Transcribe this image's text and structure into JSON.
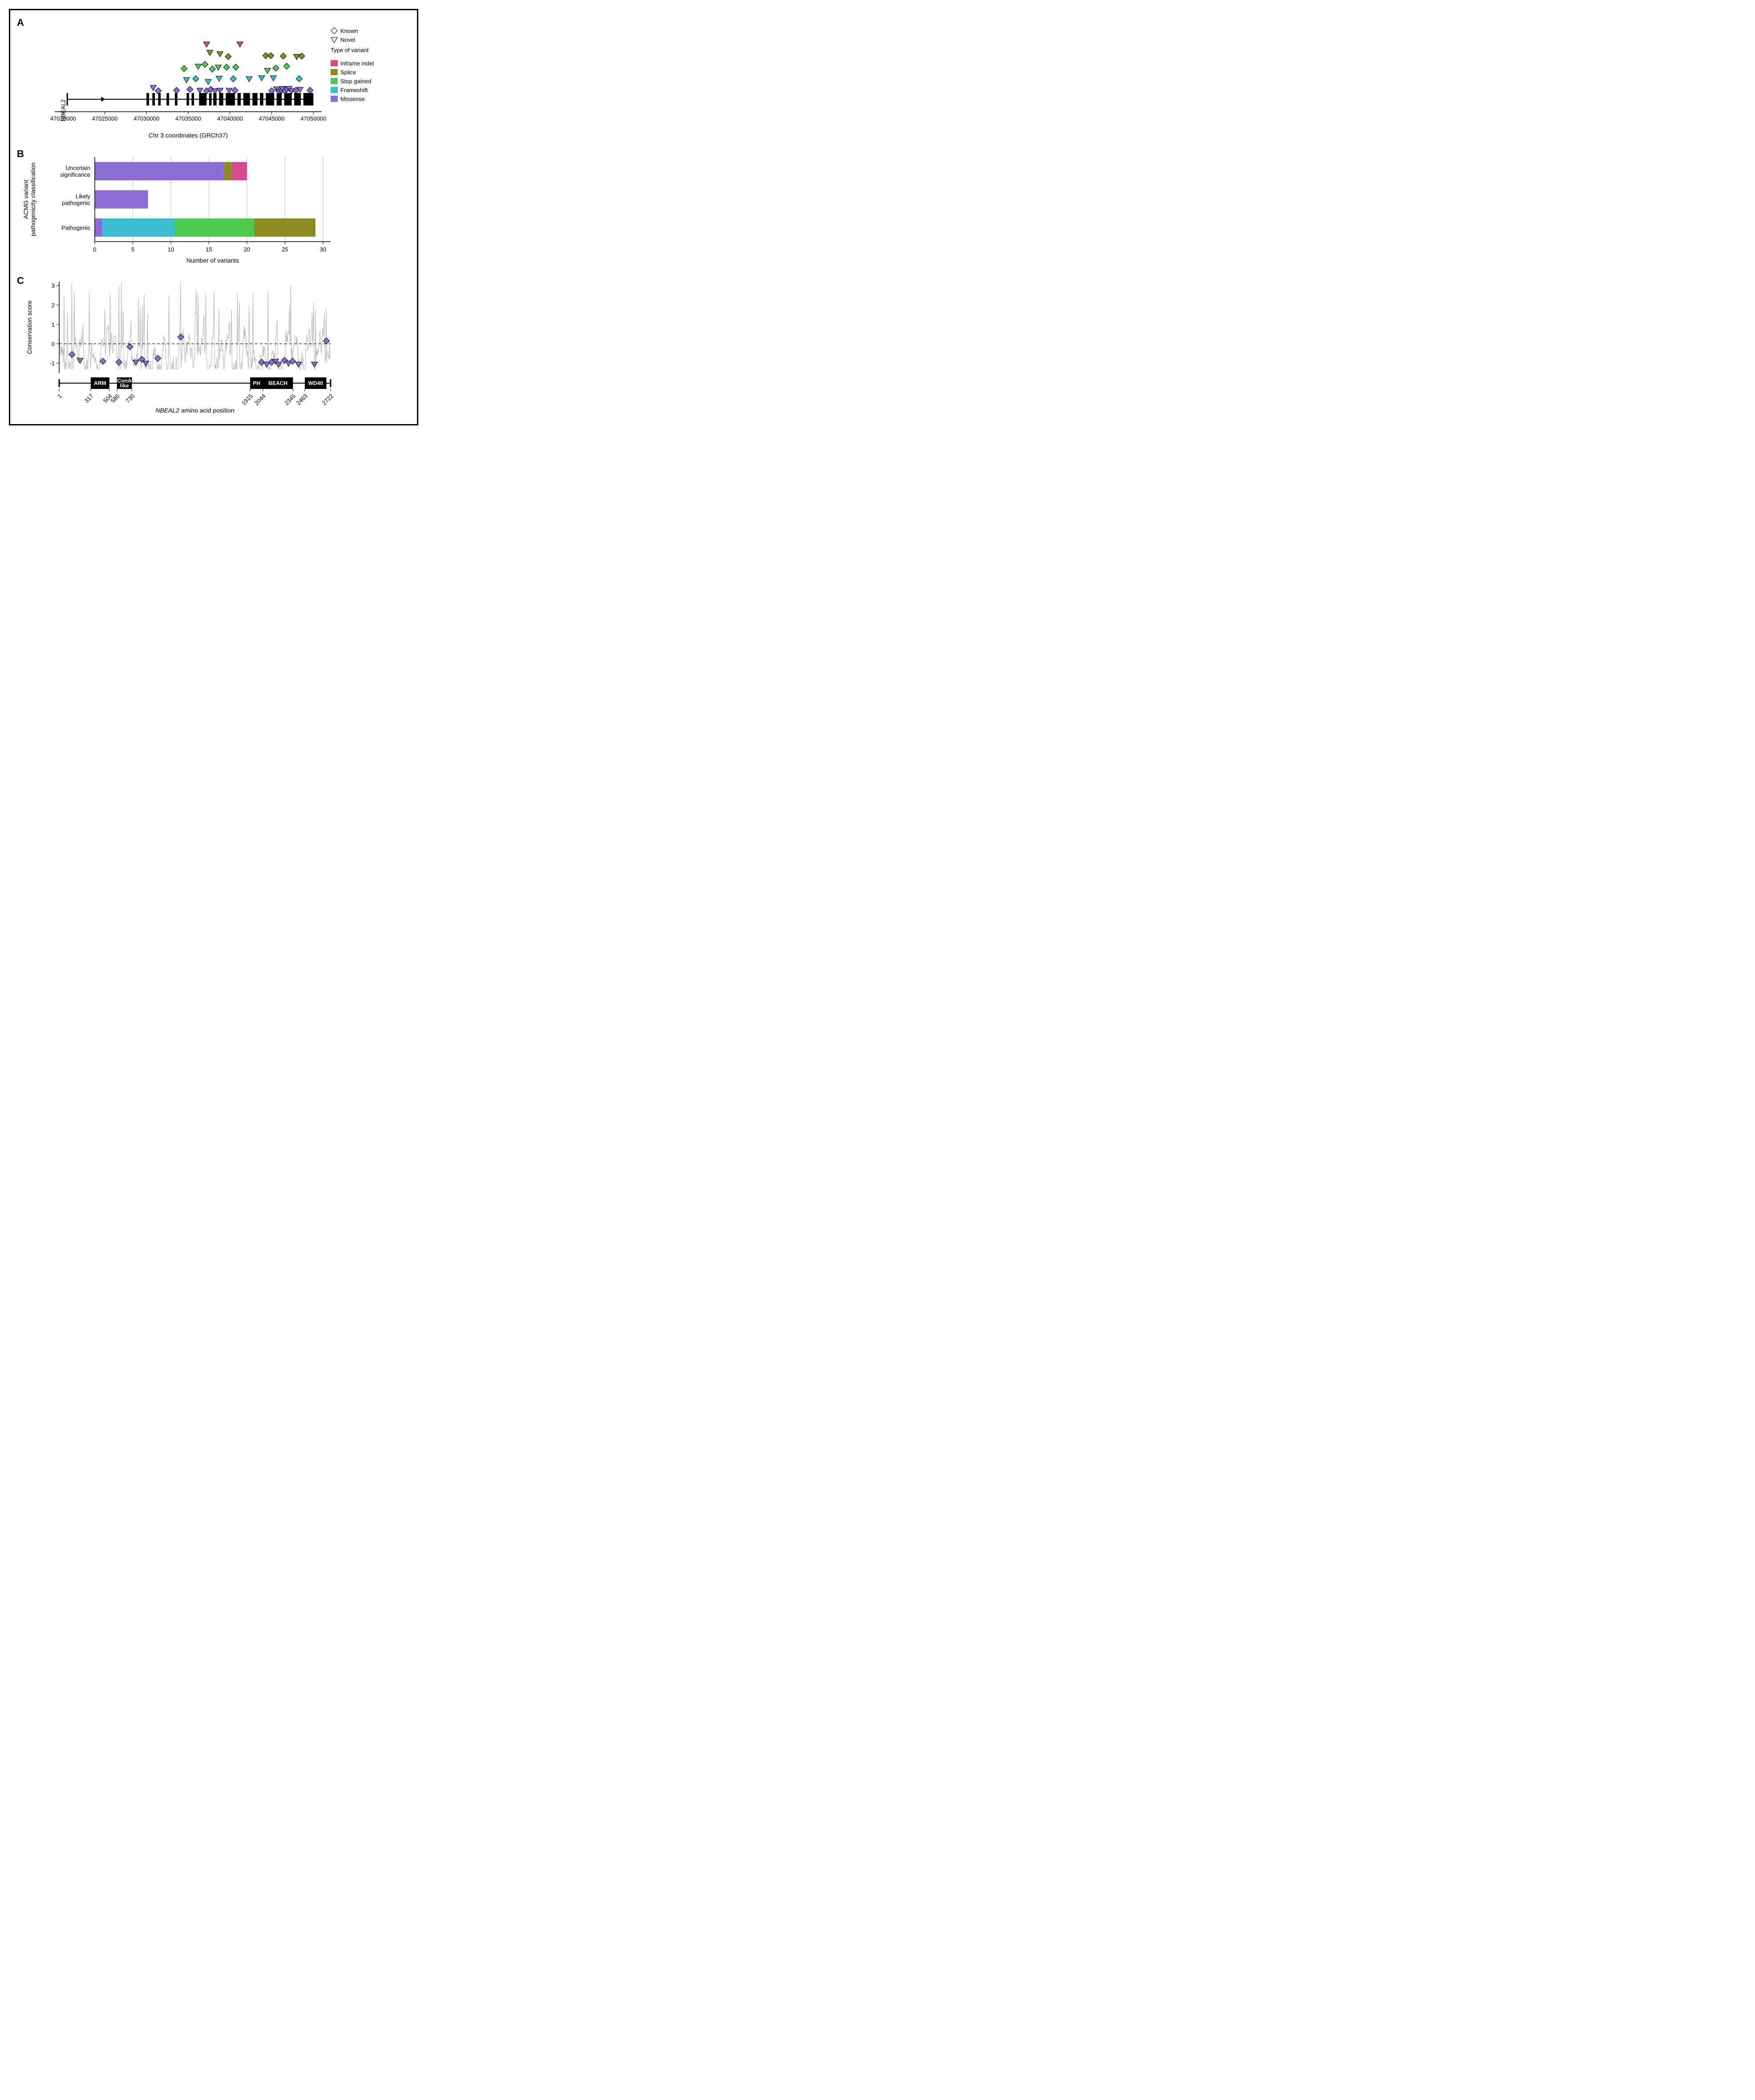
{
  "colors": {
    "inframe_indel": "#d84a8f",
    "splice": "#8f8a1f",
    "stop_gained": "#4fc94f",
    "frameshift": "#39bfcf",
    "missense": "#8b6dd4",
    "axis": "#000000",
    "grid": "#bfbfbf",
    "cons_line": "#b0b0b0",
    "domain_box": "#000000"
  },
  "legend": {
    "shape_items": [
      {
        "shape": "diamond",
        "label": "Known"
      },
      {
        "shape": "triangle",
        "label": "Novel"
      }
    ],
    "title": "Type of variant",
    "color_items": [
      {
        "key": "inframe_indel",
        "label": "Inframe indel"
      },
      {
        "key": "splice",
        "label": "Splice"
      },
      {
        "key": "stop_gained",
        "label": "Stop gained"
      },
      {
        "key": "frameshift",
        "label": "Frameshift"
      },
      {
        "key": "missense",
        "label": "Missense"
      }
    ]
  },
  "panelA": {
    "gene_name": "NBEAL2",
    "x_label": "Chr 3 coordinates (GRCh37)",
    "x_ticks": [
      47020000,
      47025000,
      47030000,
      47035000,
      47040000,
      47045000,
      47050000
    ],
    "x_lim": [
      47019000,
      47051000
    ],
    "gene_track": {
      "arrow_start": 47020500,
      "arrow_tip": 47025000,
      "line_end": 47050000,
      "exons": [
        [
          47030000,
          47030300
        ],
        [
          47030700,
          47031000
        ],
        [
          47031400,
          47031700
        ],
        [
          47032400,
          47032700
        ],
        [
          47033400,
          47033700
        ],
        [
          47034800,
          47035100
        ],
        [
          47035400,
          47035700
        ],
        [
          47036300,
          47037200
        ],
        [
          47037500,
          47037800
        ],
        [
          47038000,
          47038400
        ],
        [
          47038700,
          47039200
        ],
        [
          47039500,
          47040600
        ],
        [
          47040900,
          47041300
        ],
        [
          47041600,
          47042400
        ],
        [
          47042700,
          47043300
        ],
        [
          47043600,
          47044000
        ],
        [
          47044300,
          47045300
        ],
        [
          47045600,
          47046200
        ],
        [
          47046500,
          47047400
        ],
        [
          47047700,
          47048500
        ],
        [
          47048800,
          47050000
        ]
      ]
    },
    "row_y": {
      "inframe_indel": 5,
      "splice": 4,
      "stop_gained": 3,
      "frameshift": 2,
      "missense": 1
    },
    "points": [
      {
        "x": 47037200,
        "row": "inframe_indel",
        "shape": "triangle",
        "jy": 0.0
      },
      {
        "x": 47041200,
        "row": "inframe_indel",
        "shape": "triangle",
        "jy": 0.0
      },
      {
        "x": 47037600,
        "row": "splice",
        "shape": "triangle",
        "jy": 0.35
      },
      {
        "x": 47038800,
        "row": "splice",
        "shape": "triangle",
        "jy": 0.2
      },
      {
        "x": 47039800,
        "row": "splice",
        "shape": "diamond",
        "jy": -0.1
      },
      {
        "x": 47044300,
        "row": "splice",
        "shape": "diamond",
        "jy": 0.0
      },
      {
        "x": 47044900,
        "row": "splice",
        "shape": "diamond",
        "jy": 0.0
      },
      {
        "x": 47046400,
        "row": "splice",
        "shape": "diamond",
        "jy": -0.05
      },
      {
        "x": 47048000,
        "row": "splice",
        "shape": "triangle",
        "jy": -0.1
      },
      {
        "x": 47048600,
        "row": "splice",
        "shape": "diamond",
        "jy": -0.05
      },
      {
        "x": 47034500,
        "row": "stop_gained",
        "shape": "diamond",
        "jy": -0.15
      },
      {
        "x": 47036200,
        "row": "stop_gained",
        "shape": "triangle",
        "jy": 0.1
      },
      {
        "x": 47037000,
        "row": "stop_gained",
        "shape": "diamond",
        "jy": 0.3
      },
      {
        "x": 47037900,
        "row": "stop_gained",
        "shape": "diamond",
        "jy": -0.2
      },
      {
        "x": 47038600,
        "row": "stop_gained",
        "shape": "triangle",
        "jy": 0.0
      },
      {
        "x": 47039600,
        "row": "stop_gained",
        "shape": "diamond",
        "jy": 0.0
      },
      {
        "x": 47040700,
        "row": "stop_gained",
        "shape": "diamond",
        "jy": 0.0
      },
      {
        "x": 47044500,
        "row": "stop_gained",
        "shape": "triangle",
        "jy": -0.35
      },
      {
        "x": 47045500,
        "row": "stop_gained",
        "shape": "diamond",
        "jy": -0.1
      },
      {
        "x": 47046800,
        "row": "stop_gained",
        "shape": "diamond",
        "jy": 0.1
      },
      {
        "x": 47034800,
        "row": "frameshift",
        "shape": "triangle",
        "jy": -0.1
      },
      {
        "x": 47035900,
        "row": "frameshift",
        "shape": "diamond",
        "jy": 0.0
      },
      {
        "x": 47037400,
        "row": "frameshift",
        "shape": "triangle",
        "jy": -0.3
      },
      {
        "x": 47038700,
        "row": "frameshift",
        "shape": "triangle",
        "jy": 0.05
      },
      {
        "x": 47040400,
        "row": "frameshift",
        "shape": "diamond",
        "jy": 0.0
      },
      {
        "x": 47042300,
        "row": "frameshift",
        "shape": "triangle",
        "jy": 0.0
      },
      {
        "x": 47043800,
        "row": "frameshift",
        "shape": "triangle",
        "jy": 0.1
      },
      {
        "x": 47045200,
        "row": "frameshift",
        "shape": "triangle",
        "jy": 0.1
      },
      {
        "x": 47048300,
        "row": "frameshift",
        "shape": "diamond",
        "jy": 0.0
      },
      {
        "x": 47030800,
        "row": "missense",
        "shape": "triangle",
        "jy": 0.3
      },
      {
        "x": 47031400,
        "row": "missense",
        "shape": "diamond",
        "jy": -0.05
      },
      {
        "x": 47033600,
        "row": "missense",
        "shape": "diamond",
        "jy": 0.0
      },
      {
        "x": 47035200,
        "row": "missense",
        "shape": "diamond",
        "jy": 0.1
      },
      {
        "x": 47036400,
        "row": "missense",
        "shape": "triangle",
        "jy": 0.0
      },
      {
        "x": 47037200,
        "row": "missense",
        "shape": "diamond",
        "jy": -0.05
      },
      {
        "x": 47037700,
        "row": "missense",
        "shape": "diamond",
        "jy": 0.1
      },
      {
        "x": 47038200,
        "row": "missense",
        "shape": "triangle",
        "jy": -0.05
      },
      {
        "x": 47038800,
        "row": "missense",
        "shape": "triangle",
        "jy": 0.0
      },
      {
        "x": 47039900,
        "row": "missense",
        "shape": "triangle",
        "jy": 0.0
      },
      {
        "x": 47040600,
        "row": "missense",
        "shape": "diamond",
        "jy": 0.0
      },
      {
        "x": 47045000,
        "row": "missense",
        "shape": "diamond",
        "jy": -0.05
      },
      {
        "x": 47045600,
        "row": "missense",
        "shape": "triangle",
        "jy": 0.15
      },
      {
        "x": 47045900,
        "row": "missense",
        "shape": "triangle",
        "jy": -0.1
      },
      {
        "x": 47046200,
        "row": "missense",
        "shape": "diamond",
        "jy": 0.0
      },
      {
        "x": 47046300,
        "row": "missense",
        "shape": "triangle",
        "jy": 0.2
      },
      {
        "x": 47046600,
        "row": "missense",
        "shape": "diamond",
        "jy": -0.05
      },
      {
        "x": 47046800,
        "row": "missense",
        "shape": "triangle",
        "jy": 0.1
      },
      {
        "x": 47047100,
        "row": "missense",
        "shape": "triangle",
        "jy": 0.2
      },
      {
        "x": 47047400,
        "row": "missense",
        "shape": "triangle",
        "jy": -0.05
      },
      {
        "x": 47047900,
        "row": "missense",
        "shape": "diamond",
        "jy": 0.0
      },
      {
        "x": 47048400,
        "row": "missense",
        "shape": "triangle",
        "jy": 0.1
      },
      {
        "x": 47049600,
        "row": "missense",
        "shape": "diamond",
        "jy": 0.0
      }
    ]
  },
  "panelB": {
    "x_label": "Number of variants",
    "y_label": "ACMG variant\npathogenicity classification",
    "x_ticks": [
      0,
      5,
      10,
      15,
      20,
      25,
      30
    ],
    "x_lim": [
      0,
      31
    ],
    "categories": [
      "Uncertain\nsignificance",
      "Likely\npathogenic",
      "Pathogenic"
    ],
    "stacks": {
      "Uncertain\nsignificance": [
        {
          "type": "missense",
          "value": 17
        },
        {
          "type": "splice",
          "value": 1
        },
        {
          "type": "inframe_indel",
          "value": 2
        }
      ],
      "Likely\npathogenic": [
        {
          "type": "missense",
          "value": 7
        }
      ],
      "Pathogenic": [
        {
          "type": "missense",
          "value": 1
        },
        {
          "type": "frameshift",
          "value": 9.5
        },
        {
          "type": "stop_gained",
          "value": 10.5
        },
        {
          "type": "splice",
          "value": 8
        }
      ]
    }
  },
  "panelC": {
    "x_label": "NBEAL2 amino acid position",
    "y_label": "Conservation score",
    "x_lim": [
      1,
      2722
    ],
    "y_lim": [
      -1.5,
      3.2
    ],
    "y_ticks": [
      -1,
      0,
      1,
      2,
      3
    ],
    "x_tick_labels": [
      1,
      317,
      504,
      580,
      730,
      1915,
      2044,
      2345,
      2463,
      2722
    ],
    "domains": [
      {
        "name": "ARM",
        "start": 317,
        "end": 504
      },
      {
        "name": "ConA\nlike",
        "start": 580,
        "end": 730
      },
      {
        "name": "PH",
        "start": 1915,
        "end": 2044
      },
      {
        "name": "BEACH",
        "start": 2044,
        "end": 2345
      },
      {
        "name": "WD40",
        "start": 2463,
        "end": 2680
      }
    ],
    "missense_points": [
      {
        "x": 130,
        "y": -0.55,
        "shape": "diamond"
      },
      {
        "x": 210,
        "y": -0.85,
        "shape": "triangle"
      },
      {
        "x": 440,
        "y": -0.9,
        "shape": "diamond"
      },
      {
        "x": 600,
        "y": -0.95,
        "shape": "diamond"
      },
      {
        "x": 710,
        "y": -0.15,
        "shape": "diamond"
      },
      {
        "x": 770,
        "y": -0.95,
        "shape": "triangle"
      },
      {
        "x": 830,
        "y": -0.8,
        "shape": "diamond"
      },
      {
        "x": 870,
        "y": -1.0,
        "shape": "triangle"
      },
      {
        "x": 990,
        "y": -0.75,
        "shape": "diamond"
      },
      {
        "x": 1220,
        "y": 0.35,
        "shape": "diamond"
      },
      {
        "x": 2030,
        "y": -0.95,
        "shape": "diamond"
      },
      {
        "x": 2080,
        "y": -1.05,
        "shape": "triangle"
      },
      {
        "x": 2130,
        "y": -0.95,
        "shape": "diamond"
      },
      {
        "x": 2170,
        "y": -0.9,
        "shape": "triangle"
      },
      {
        "x": 2200,
        "y": -1.05,
        "shape": "triangle"
      },
      {
        "x": 2260,
        "y": -0.85,
        "shape": "diamond"
      },
      {
        "x": 2300,
        "y": -1.0,
        "shape": "triangle"
      },
      {
        "x": 2340,
        "y": -0.9,
        "shape": "diamond"
      },
      {
        "x": 2400,
        "y": -1.05,
        "shape": "triangle"
      },
      {
        "x": 2560,
        "y": -1.05,
        "shape": "triangle"
      },
      {
        "x": 2680,
        "y": 0.15,
        "shape": "diamond"
      }
    ],
    "conservation_noise": {
      "n": 560,
      "seed": 42
    }
  }
}
